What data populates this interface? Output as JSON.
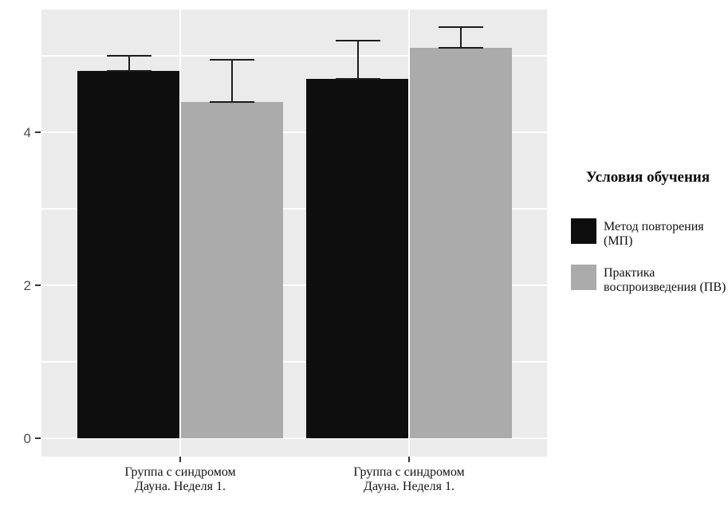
{
  "chart_data": {
    "type": "bar",
    "title": "",
    "categories": [
      {
        "label": "Группа с синдромом Дауна. Неделя 1.",
        "label_lines": [
          "Группа с синдромом",
          "Дауна. Неделя 1."
        ]
      },
      {
        "label": "Группа с синдромом Дауна. Неделя 1.",
        "label_lines": [
          "Группа с синдромом",
          "Дауна. Неделя 1."
        ]
      }
    ],
    "series": [
      {
        "name": "Метод повторения (МП)",
        "legend_lines": [
          "Метод повторения",
          "(МП)"
        ],
        "color": "#0e0e0e",
        "values": [
          4.8,
          4.7
        ],
        "error_plus": [
          0.2,
          0.5
        ]
      },
      {
        "name": "Практика воспроизведения (ПВ)",
        "legend_lines": [
          "Практика",
          "воспроизведения (ПВ)"
        ],
        "color": "#ababab",
        "values": [
          4.4,
          5.1
        ],
        "error_plus": [
          0.55,
          0.28
        ]
      }
    ],
    "xlabel": "",
    "ylabel": "",
    "ylim": [
      0,
      5.6
    ],
    "yticks_major": [
      0,
      2,
      4
    ],
    "gridlines_minor": [
      1,
      3,
      5
    ],
    "grid": true,
    "error_bars": "upper, capped, lower cap drawn at bar top",
    "legend": {
      "title": "Условия обучения",
      "position": "right"
    },
    "colors": {
      "panel_background": "#ebebeb",
      "gridline": "#ffffff",
      "errorbar": "#1c1c1c",
      "tick_label": "#4d4d4d",
      "axis_text": "#111111",
      "page_background": "#ffffff"
    }
  }
}
